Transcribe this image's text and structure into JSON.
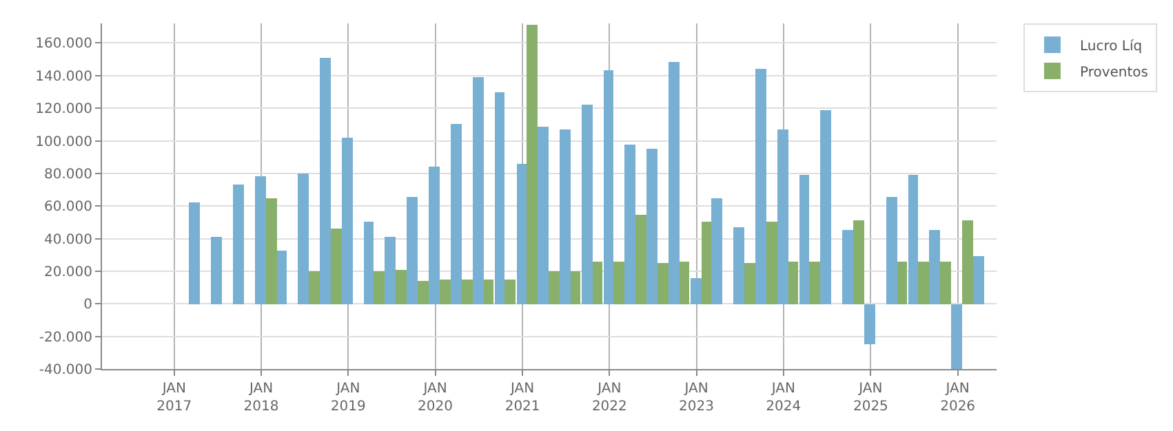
{
  "chart_data": {
    "type": "bar",
    "x": [
      "2017-04-20",
      "2017-07-20",
      "2017-10-20",
      "2018-01-20",
      "2018-04-20",
      "2018-07-20",
      "2018-10-20",
      "2019-01-20",
      "2019-04-20",
      "2019-07-20",
      "2019-10-20",
      "2020-01-20",
      "2020-04-20",
      "2020-07-20",
      "2020-10-20",
      "2021-01-20",
      "2021-04-20",
      "2021-07-20",
      "2021-10-20",
      "2022-01-20",
      "2022-04-20",
      "2022-07-20",
      "2022-10-20",
      "2023-01-20",
      "2023-04-20",
      "2023-07-20",
      "2023-10-20",
      "2024-01-20",
      "2024-04-20",
      "2024-07-20",
      "2024-10-20",
      "2025-01-20",
      "2025-04-20",
      "2025-07-20",
      "2025-10-20",
      "2026-01-20",
      "2026-04-20"
    ],
    "series": [
      {
        "name": "Lucro Líq",
        "color": "#77b0d3",
        "values": [
          62000,
          41000,
          73000,
          78000,
          33000,
          80000,
          151000,
          102000,
          50000,
          41000,
          66000,
          84000,
          110000,
          139000,
          130000,
          86000,
          109000,
          107000,
          122000,
          143000,
          98000,
          95000,
          148000,
          16000,
          65000,
          47000,
          144000,
          107000,
          79000,
          119000,
          45000,
          -25000,
          66000,
          79000,
          45000,
          -40000,
          29000
        ]
      },
      {
        "name": "Proventos",
        "color": "#88b06a",
        "values": [
          0,
          0,
          0,
          65000,
          0,
          20000,
          46000,
          0,
          20000,
          21000,
          14000,
          15000,
          15000,
          15000,
          15000,
          171000,
          20000,
          20000,
          26000,
          26000,
          55000,
          25000,
          26000,
          50000,
          0,
          25000,
          50000,
          26000,
          26000,
          0,
          51000,
          0,
          26000,
          26000,
          26000,
          51000,
          0
        ]
      }
    ],
    "xlim": [
      "2016-03-04",
      "2026-06-13"
    ],
    "xticks": [
      {
        "value": "2017-01-01",
        "label": "JAN\n2017"
      },
      {
        "value": "2018-01-01",
        "label": "JAN\n2018"
      },
      {
        "value": "2019-01-01",
        "label": "JAN\n2019"
      },
      {
        "value": "2020-01-01",
        "label": "JAN\n2020"
      },
      {
        "value": "2021-01-01",
        "label": "JAN\n2021"
      },
      {
        "value": "2022-01-01",
        "label": "JAN\n2022"
      },
      {
        "value": "2023-01-01",
        "label": "JAN\n2023"
      },
      {
        "value": "2024-01-01",
        "label": "JAN\n2024"
      },
      {
        "value": "2025-01-01",
        "label": "JAN\n2025"
      },
      {
        "value": "2026-01-01",
        "label": "JAN\n2026"
      }
    ],
    "ylim": [
      -40000,
      172000
    ],
    "yticks": [
      {
        "value": -40000,
        "label": "-40.000"
      },
      {
        "value": -20000,
        "label": "-20.000"
      },
      {
        "value": 0,
        "label": "0"
      },
      {
        "value": 20000,
        "label": "20.000"
      },
      {
        "value": 40000,
        "label": "40.000"
      },
      {
        "value": 60000,
        "label": "60.000"
      },
      {
        "value": 80000,
        "label": "80.000"
      },
      {
        "value": 100000,
        "label": "100.000"
      },
      {
        "value": 120000,
        "label": "120.000"
      },
      {
        "value": 140000,
        "label": "140.000"
      },
      {
        "value": 160000,
        "label": "160.000"
      }
    ],
    "grid": true,
    "legend": "top right"
  }
}
